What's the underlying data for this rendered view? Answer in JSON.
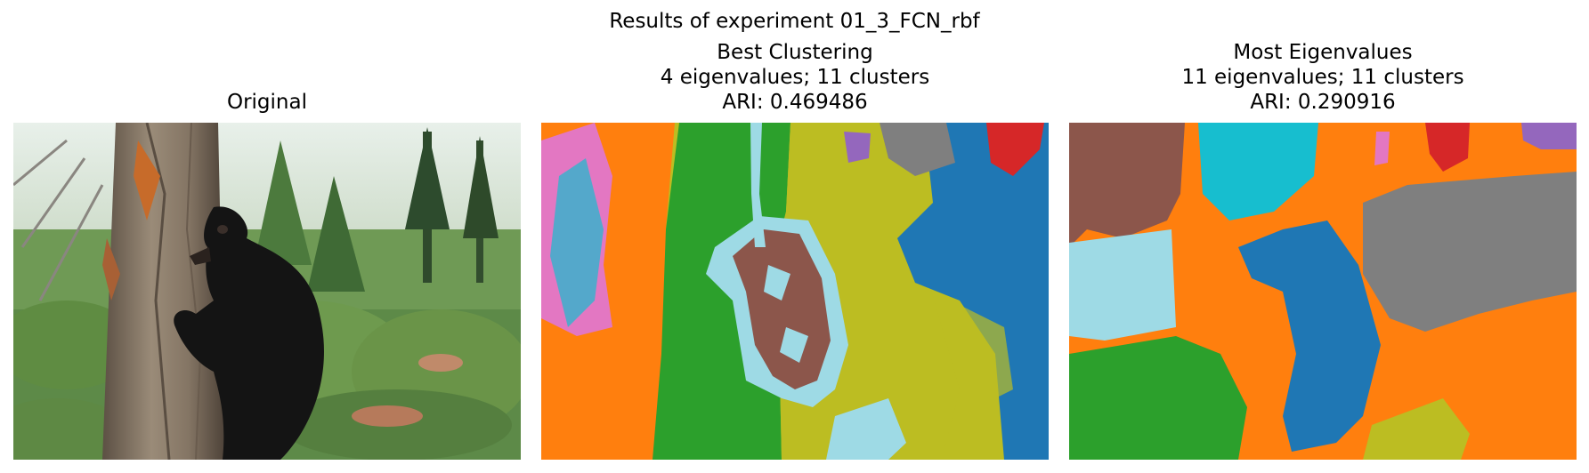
{
  "figure": {
    "suptitle": "Results of experiment 01_3_FCN_rbf"
  },
  "panels": [
    {
      "title_lines": [
        "Original"
      ],
      "image": "photo of a black bear climbing a tree trunk in a green forest"
    },
    {
      "title_lines": [
        "Best Clustering",
        "4 eigenvalues; 11 clusters",
        "ARI: 0.469486"
      ],
      "image": "segmentation map with 11 colored clusters"
    },
    {
      "title_lines": [
        "Most Eigenvalues",
        "11 eigenvalues; 11 clusters",
        "ARI: 0.290916"
      ],
      "image": "segmentation map with 11 colored clusters"
    }
  ],
  "colors": {
    "blue": "#1f77b4",
    "orange": "#ff7f0e",
    "green": "#2ca02c",
    "red": "#d62728",
    "purple": "#9467bd",
    "brown": "#8c564b",
    "pink": "#e377c2",
    "gray": "#7f7f7f",
    "olive": "#bcbd22",
    "cyan": "#17becf",
    "lightblue": "#9edae5"
  }
}
